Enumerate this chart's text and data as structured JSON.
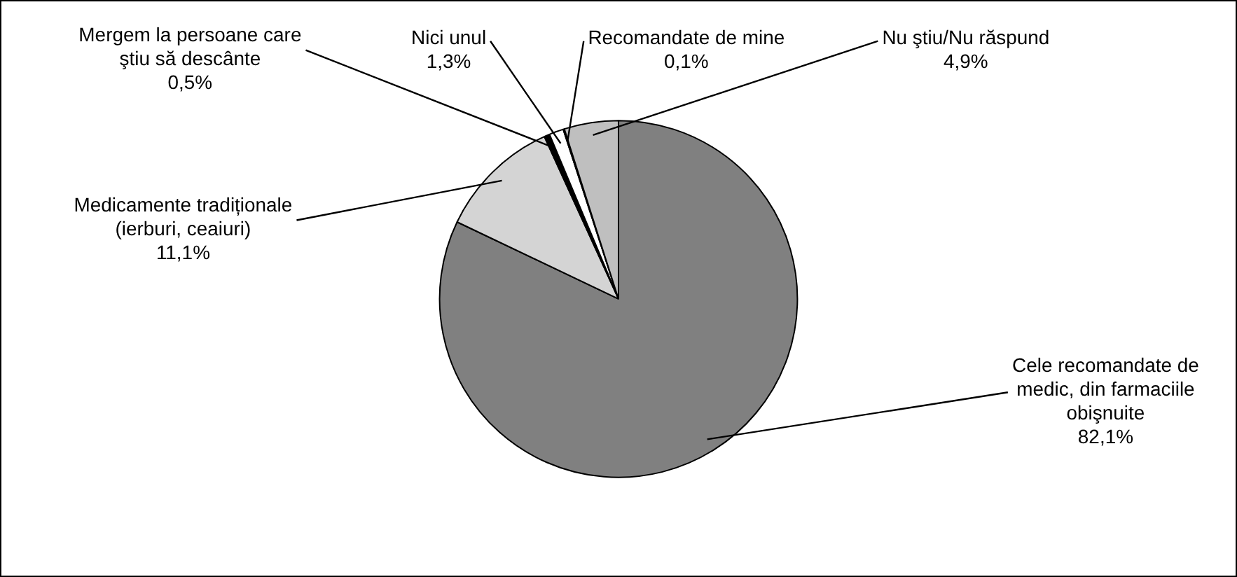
{
  "chart_data": {
    "type": "pie",
    "categories": [
      "Cele recomandate de medic, din farmaciile obişnuite",
      "Medicamente tradiționale (ierburi, ceaiuri)",
      "Mergem la persoane care ştiu să descânte",
      "Nici unul",
      "Recomandate de mine",
      "Nu ştiu/Nu răspund"
    ],
    "values": [
      82.1,
      11.1,
      0.5,
      1.3,
      0.1,
      4.9
    ],
    "value_labels": [
      "82,1%",
      "11,1%",
      "0,5%",
      "1,3%",
      "0,1%",
      "4,9%"
    ],
    "colors": [
      "#808080",
      "#d4d4d4",
      "#000000",
      "#ffffff",
      "#000000",
      "#bfbfbf"
    ],
    "legend": false
  }
}
